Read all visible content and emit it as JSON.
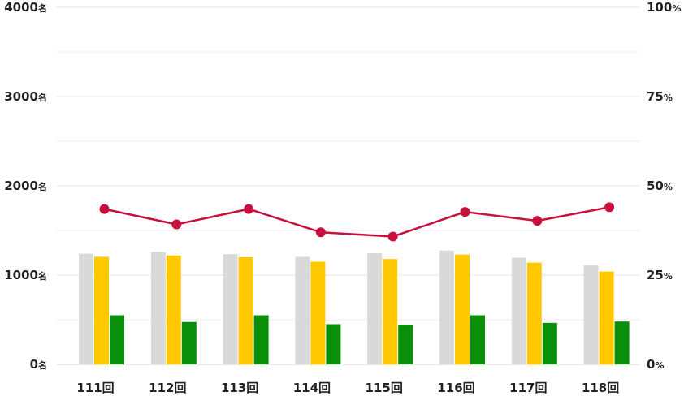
{
  "chart_data": {
    "type": "bar",
    "title": "",
    "categories": [
      "111回",
      "112回",
      "113回",
      "114回",
      "115回",
      "116回",
      "117回",
      "118回"
    ],
    "y_left": {
      "min": 0,
      "max": 4000,
      "ticks": [
        0,
        1000,
        2000,
        3000,
        4000
      ],
      "unit": "名"
    },
    "y_right": {
      "min": 0,
      "max": 100,
      "ticks": [
        0,
        25,
        50,
        75,
        100
      ],
      "unit": "%"
    },
    "grid": true,
    "series": [
      {
        "type": "bar",
        "axis": "left",
        "color": "#d9d9d9",
        "values": [
          1240,
          1260,
          1235,
          1205,
          1245,
          1275,
          1195,
          1110
        ]
      },
      {
        "type": "bar",
        "axis": "left",
        "color": "#ffc800",
        "values": [
          1205,
          1220,
          1200,
          1150,
          1180,
          1230,
          1140,
          1040
        ]
      },
      {
        "type": "bar",
        "axis": "left",
        "color": "#0a8f0a",
        "values": [
          550,
          475,
          550,
          450,
          445,
          550,
          465,
          480
        ]
      },
      {
        "type": "line",
        "axis": "right",
        "color": "#c8103e",
        "values": [
          43.5,
          39.2,
          43.5,
          37.0,
          35.8,
          42.7,
          40.2,
          44.0
        ]
      }
    ]
  }
}
